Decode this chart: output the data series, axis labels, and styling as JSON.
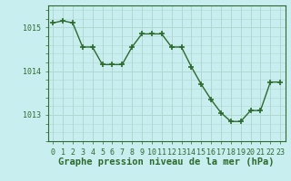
{
  "x": [
    0,
    1,
    2,
    3,
    4,
    5,
    6,
    7,
    8,
    9,
    10,
    11,
    12,
    13,
    14,
    15,
    16,
    17,
    18,
    19,
    20,
    21,
    22,
    23
  ],
  "y": [
    1015.1,
    1015.15,
    1015.1,
    1014.55,
    1014.55,
    1014.15,
    1014.15,
    1014.15,
    1014.55,
    1014.85,
    1014.85,
    1014.85,
    1014.55,
    1014.55,
    1014.1,
    1013.7,
    1013.35,
    1013.05,
    1012.85,
    1012.85,
    1013.1,
    1013.1,
    1013.75,
    1013.75
  ],
  "line_color": "#2d6a2d",
  "marker": "+",
  "marker_color": "#2d6a2d",
  "bg_color": "#c8eef0",
  "grid_color": "#b0d8d0",
  "axis_color": "#2d6a2d",
  "label_color": "#2d6a2d",
  "xlabel": "Graphe pression niveau de la mer (hPa)",
  "yticks": [
    1013,
    1014,
    1015
  ],
  "ylim": [
    1012.4,
    1015.5
  ],
  "xlim": [
    -0.5,
    23.5
  ],
  "xtick_labels": [
    "0",
    "1",
    "2",
    "3",
    "4",
    "5",
    "6",
    "7",
    "8",
    "9",
    "10",
    "11",
    "12",
    "13",
    "14",
    "15",
    "16",
    "17",
    "18",
    "19",
    "20",
    "21",
    "22",
    "23"
  ],
  "xlabel_fontsize": 7.5,
  "tick_fontsize": 6.0
}
